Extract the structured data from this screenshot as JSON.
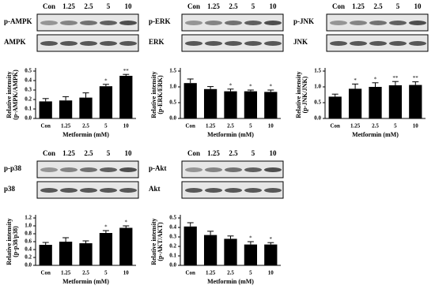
{
  "chart_data": [
    {
      "type": "bar",
      "blots": [
        "p-AMPK",
        "AMPK"
      ],
      "categories": [
        "Con",
        "1.25",
        "2.5",
        "5",
        "10"
      ],
      "values": [
        0.18,
        0.19,
        0.22,
        0.34,
        0.45
      ],
      "errors": [
        0.03,
        0.04,
        0.05,
        0.02,
        0.015
      ],
      "significance": [
        null,
        null,
        null,
        "*",
        "**"
      ],
      "ylabel": [
        "Relative intensity",
        "(p-AMPK/AMPK)"
      ],
      "xlabel": "Metformin (mM)",
      "color": "#000000",
      "ylim": [
        0,
        0.5
      ],
      "yticks": [
        {
          "value": 0,
          "label": "0.0"
        },
        0.1,
        0.2,
        0.3,
        0.4,
        0.5
      ]
    },
    {
      "type": "bar",
      "blots": [
        "p-ERK",
        "ERK"
      ],
      "categories": [
        "Con",
        "1.25",
        "2.5",
        "5",
        "10"
      ],
      "values": [
        1.12,
        0.93,
        0.86,
        0.86,
        0.84
      ],
      "errors": [
        0.13,
        0.08,
        0.07,
        0.04,
        0.06
      ],
      "significance": [
        null,
        null,
        "*",
        "*",
        "*"
      ],
      "ylabel": [
        "Relative intensity",
        "(p-ERK/ERK)"
      ],
      "xlabel": "Metformin (mM)",
      "color": "#000000",
      "ylim": [
        0,
        1.5
      ],
      "yticks": [
        {
          "value": 0,
          "label": "0.0"
        },
        0.5,
        {
          "value": 1,
          "label": "1.0"
        },
        1.5
      ]
    },
    {
      "type": "bar",
      "blots": [
        "p-JNK",
        "JNK"
      ],
      "categories": [
        "Con",
        "1.25",
        "2.5",
        "5",
        "10"
      ],
      "values": [
        0.69,
        0.94,
        1.0,
        1.05,
        1.06
      ],
      "errors": [
        0.08,
        0.15,
        0.13,
        0.12,
        0.1
      ],
      "significance": [
        null,
        "*",
        "*",
        "**",
        "**"
      ],
      "ylabel": [
        "Relative intensity",
        "(p-JNK/JNK)"
      ],
      "xlabel": "Metformin (mM)",
      "color": "#000000",
      "ylim": [
        0,
        1.5
      ],
      "yticks": [
        {
          "value": 0,
          "label": "0.0"
        },
        0.5,
        {
          "value": 1,
          "label": "1.0"
        },
        1.5
      ]
    },
    {
      "type": "bar",
      "blots": [
        "p-p38",
        "p38"
      ],
      "categories": [
        "Con",
        "1.25",
        "2.5",
        "5",
        "10"
      ],
      "values": [
        0.52,
        0.6,
        0.56,
        0.82,
        0.95
      ],
      "errors": [
        0.06,
        0.1,
        0.06,
        0.06,
        0.05
      ],
      "significance": [
        null,
        null,
        null,
        "*",
        "*"
      ],
      "ylabel": [
        "Relative intensity",
        "(p-p38/p38)"
      ],
      "xlabel": "Metformin (mM)",
      "color": "#000000",
      "ylim": [
        0,
        1.2
      ],
      "yticks": [
        {
          "value": 0,
          "label": "0.0"
        },
        0.2,
        0.4,
        0.6,
        0.8,
        {
          "value": 1,
          "label": "1.0"
        },
        1.2
      ]
    },
    {
      "type": "bar",
      "blots": [
        "p-Akt",
        "Akt"
      ],
      "categories": [
        "Con",
        "1.25",
        "2.5",
        "5",
        "10"
      ],
      "values": [
        0.41,
        0.32,
        0.28,
        0.22,
        0.22
      ],
      "errors": [
        0.04,
        0.04,
        0.03,
        0.03,
        0.02
      ],
      "significance": [
        null,
        null,
        null,
        "*",
        "*"
      ],
      "ylabel": [
        "Relative intensity",
        "(p-AKT/AKT)"
      ],
      "xlabel": "Metformin (mM)",
      "color": "#000000",
      "ylim": [
        0,
        0.5
      ],
      "yticks": [
        {
          "value": 0,
          "label": "0.0"
        },
        0.1,
        0.2,
        0.3,
        0.4,
        0.5
      ]
    }
  ]
}
